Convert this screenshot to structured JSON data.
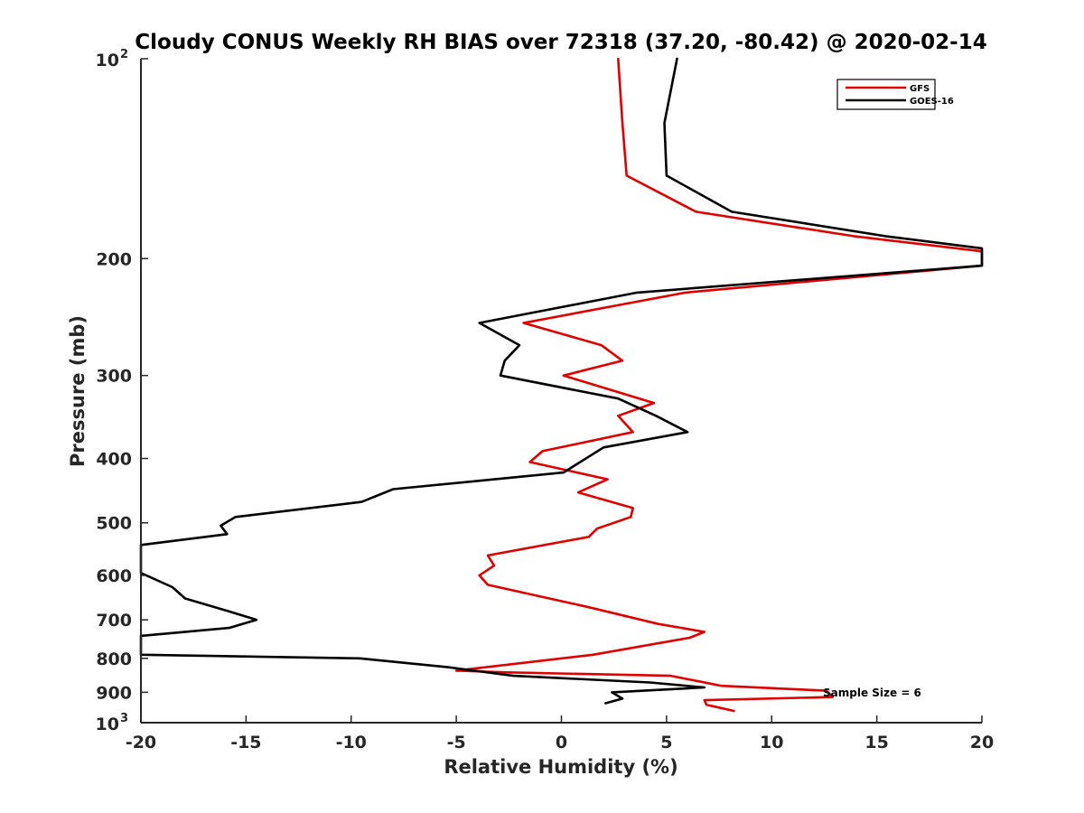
{
  "chart_data": {
    "type": "line",
    "title": "Cloudy CONUS Weekly RH BIAS over 72318 (37.20, -80.42) @ 2020-02-14",
    "xlabel": "Relative Humidity (%)",
    "ylabel": "Pressure (mb)",
    "xlim": [
      -20,
      20
    ],
    "ylim": [
      100,
      1000
    ],
    "yscale": "log",
    "y_reversed": true,
    "x_ticks": [
      "-20",
      "-15",
      "-10",
      "-5",
      "0",
      "5",
      "10",
      "15",
      "20"
    ],
    "y_ticks": [
      {
        "value": 100,
        "base": "10",
        "exp": "2"
      },
      {
        "value": 200,
        "label": "200"
      },
      {
        "value": 300,
        "label": "300"
      },
      {
        "value": 400,
        "label": "400"
      },
      {
        "value": 500,
        "label": "500"
      },
      {
        "value": 600,
        "label": "600"
      },
      {
        "value": 700,
        "label": "700"
      },
      {
        "value": 800,
        "label": "800"
      },
      {
        "value": 900,
        "label": "900"
      },
      {
        "value": 1000,
        "base": "10",
        "exp": "3"
      }
    ],
    "legend_position": "top-right",
    "annotation": "Sample Size = 6",
    "series": [
      {
        "name": "GFS",
        "color": "#e00000",
        "points": [
          [
            2.7,
            100
          ],
          [
            2.9,
            125
          ],
          [
            3.1,
            150
          ],
          [
            6.4,
            170
          ],
          [
            13.9,
            185
          ],
          [
            20,
            195
          ],
          [
            20,
            205
          ],
          [
            5.9,
            225
          ],
          [
            -1.8,
            250
          ],
          [
            1.9,
            270
          ],
          [
            2.9,
            285
          ],
          [
            0.1,
            300
          ],
          [
            4.4,
            330
          ],
          [
            2.7,
            345
          ],
          [
            3.4,
            365
          ],
          [
            -0.9,
            390
          ],
          [
            -1.5,
            405
          ],
          [
            2.2,
            430
          ],
          [
            0.8,
            450
          ],
          [
            3.4,
            475
          ],
          [
            3.3,
            490
          ],
          [
            1.7,
            510
          ],
          [
            1.3,
            525
          ],
          [
            -3.5,
            560
          ],
          [
            -3.2,
            580
          ],
          [
            -3.9,
            600
          ],
          [
            -3.5,
            620
          ],
          [
            1.3,
            670
          ],
          [
            4.6,
            710
          ],
          [
            6.8,
            730
          ],
          [
            6.1,
            745
          ],
          [
            1.5,
            790
          ],
          [
            -5.0,
            835
          ],
          [
            -2.6,
            840
          ],
          [
            5.2,
            850
          ],
          [
            7.6,
            880
          ],
          [
            12.6,
            895
          ],
          [
            12.9,
            915
          ],
          [
            6.8,
            925
          ],
          [
            6.9,
            940
          ],
          [
            8.2,
            960
          ]
        ]
      },
      {
        "name": "GOES-16",
        "color": "#000000",
        "points": [
          [
            5.5,
            100
          ],
          [
            4.9,
            125
          ],
          [
            5.0,
            150
          ],
          [
            8.1,
            170
          ],
          [
            15.4,
            185
          ],
          [
            20,
            193
          ],
          [
            20,
            205
          ],
          [
            3.6,
            225
          ],
          [
            -3.9,
            250
          ],
          [
            -2.0,
            270
          ],
          [
            -2.7,
            285
          ],
          [
            -2.9,
            300
          ],
          [
            2.7,
            325
          ],
          [
            4.5,
            345
          ],
          [
            6.0,
            365
          ],
          [
            2.0,
            385
          ],
          [
            0.1,
            420
          ],
          [
            -8.0,
            445
          ],
          [
            -9.5,
            465
          ],
          [
            -15.5,
            490
          ],
          [
            -16.2,
            505
          ],
          [
            -15.9,
            520
          ],
          [
            -20,
            540
          ],
          [
            -20,
            595
          ],
          [
            -18.5,
            625
          ],
          [
            -17.9,
            650
          ],
          [
            -15.8,
            680
          ],
          [
            -14.5,
            700
          ],
          [
            -15.8,
            720
          ],
          [
            -20,
            740
          ],
          [
            -20,
            790
          ],
          [
            -9.6,
            800
          ],
          [
            -5.4,
            825
          ],
          [
            -2.3,
            850
          ],
          [
            4.2,
            870
          ],
          [
            6.8,
            885
          ],
          [
            2.4,
            900
          ],
          [
            2.9,
            920
          ],
          [
            2.1,
            935
          ]
        ]
      }
    ]
  }
}
